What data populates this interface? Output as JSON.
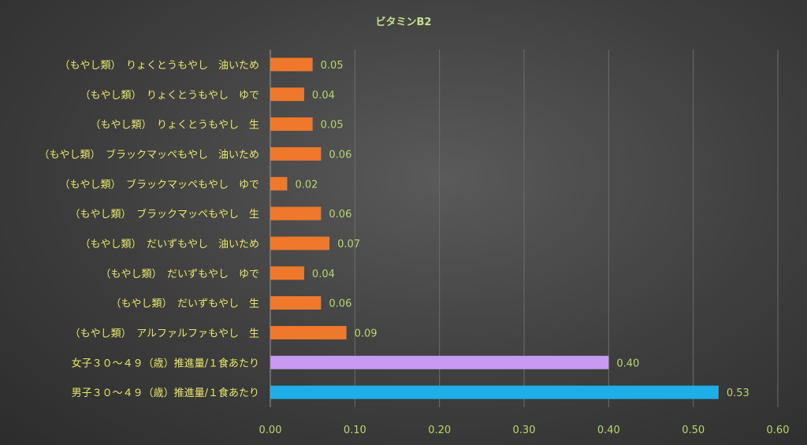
{
  "chart_data": {
    "type": "bar",
    "orientation": "horizontal",
    "title": "ビタミンB2",
    "xlabel": "",
    "ylabel": "",
    "xlim": [
      0,
      0.6
    ],
    "ticks": [
      "0.00",
      "0.10",
      "0.20",
      "0.30",
      "0.40",
      "0.50",
      "0.60"
    ],
    "grid": true,
    "categories": [
      "（もやし類）　りょくとうもやし　油いため",
      "（もやし類）　りょくとうもやし　ゆで",
      "（もやし類）　りょくとうもやし　生",
      "（もやし類）　ブラックマッペもやし　油いため",
      "（もやし類）　ブラックマッペもやし　ゆで",
      "（もやし類）　ブラックマッペもやし　生",
      "（もやし類）　だいずもやし　油いため",
      "（もやし類）　だいずもやし　ゆで",
      "（もやし類）　だいずもやし　生",
      "（もやし類）　アルファルファもやし　生",
      "女子３０～４９（歳）推進量/１食あたり",
      "男子３０～４９（歳）推進量/１食あたり"
    ],
    "values": [
      0.05,
      0.04,
      0.05,
      0.06,
      0.02,
      0.06,
      0.07,
      0.04,
      0.06,
      0.09,
      0.4,
      0.53
    ],
    "value_labels": [
      "0.05",
      "0.04",
      "0.05",
      "0.06",
      "0.02",
      "0.06",
      "0.07",
      "0.04",
      "0.06",
      "0.09",
      "0.40",
      "0.53"
    ],
    "bar_colors": [
      "#f0782a",
      "#f0782a",
      "#f0782a",
      "#f0782a",
      "#f0782a",
      "#f0782a",
      "#f0782a",
      "#f0782a",
      "#f0782a",
      "#f0782a",
      "#c89af2",
      "#1eaee8"
    ]
  }
}
